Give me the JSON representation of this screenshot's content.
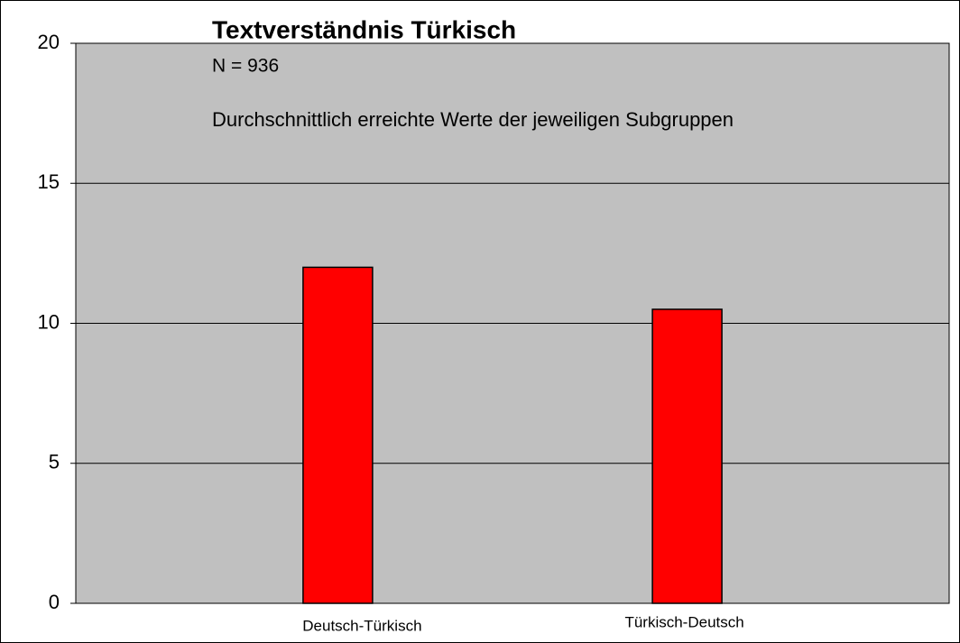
{
  "chart_data": {
    "type": "bar",
    "title": "Textverständnis Türkisch",
    "subtitle": "N = 936",
    "annotation": "Durchschnittlich erreichte Werte der jeweiligen Subgruppen",
    "categories": [
      "Deutsch-Türkisch",
      "Türkisch-Deutsch"
    ],
    "values": [
      12,
      10.5
    ],
    "color": "#ff0000",
    "ylim": [
      0,
      20
    ],
    "yticks": [
      0,
      5,
      10,
      15,
      20
    ],
    "grid": true
  }
}
